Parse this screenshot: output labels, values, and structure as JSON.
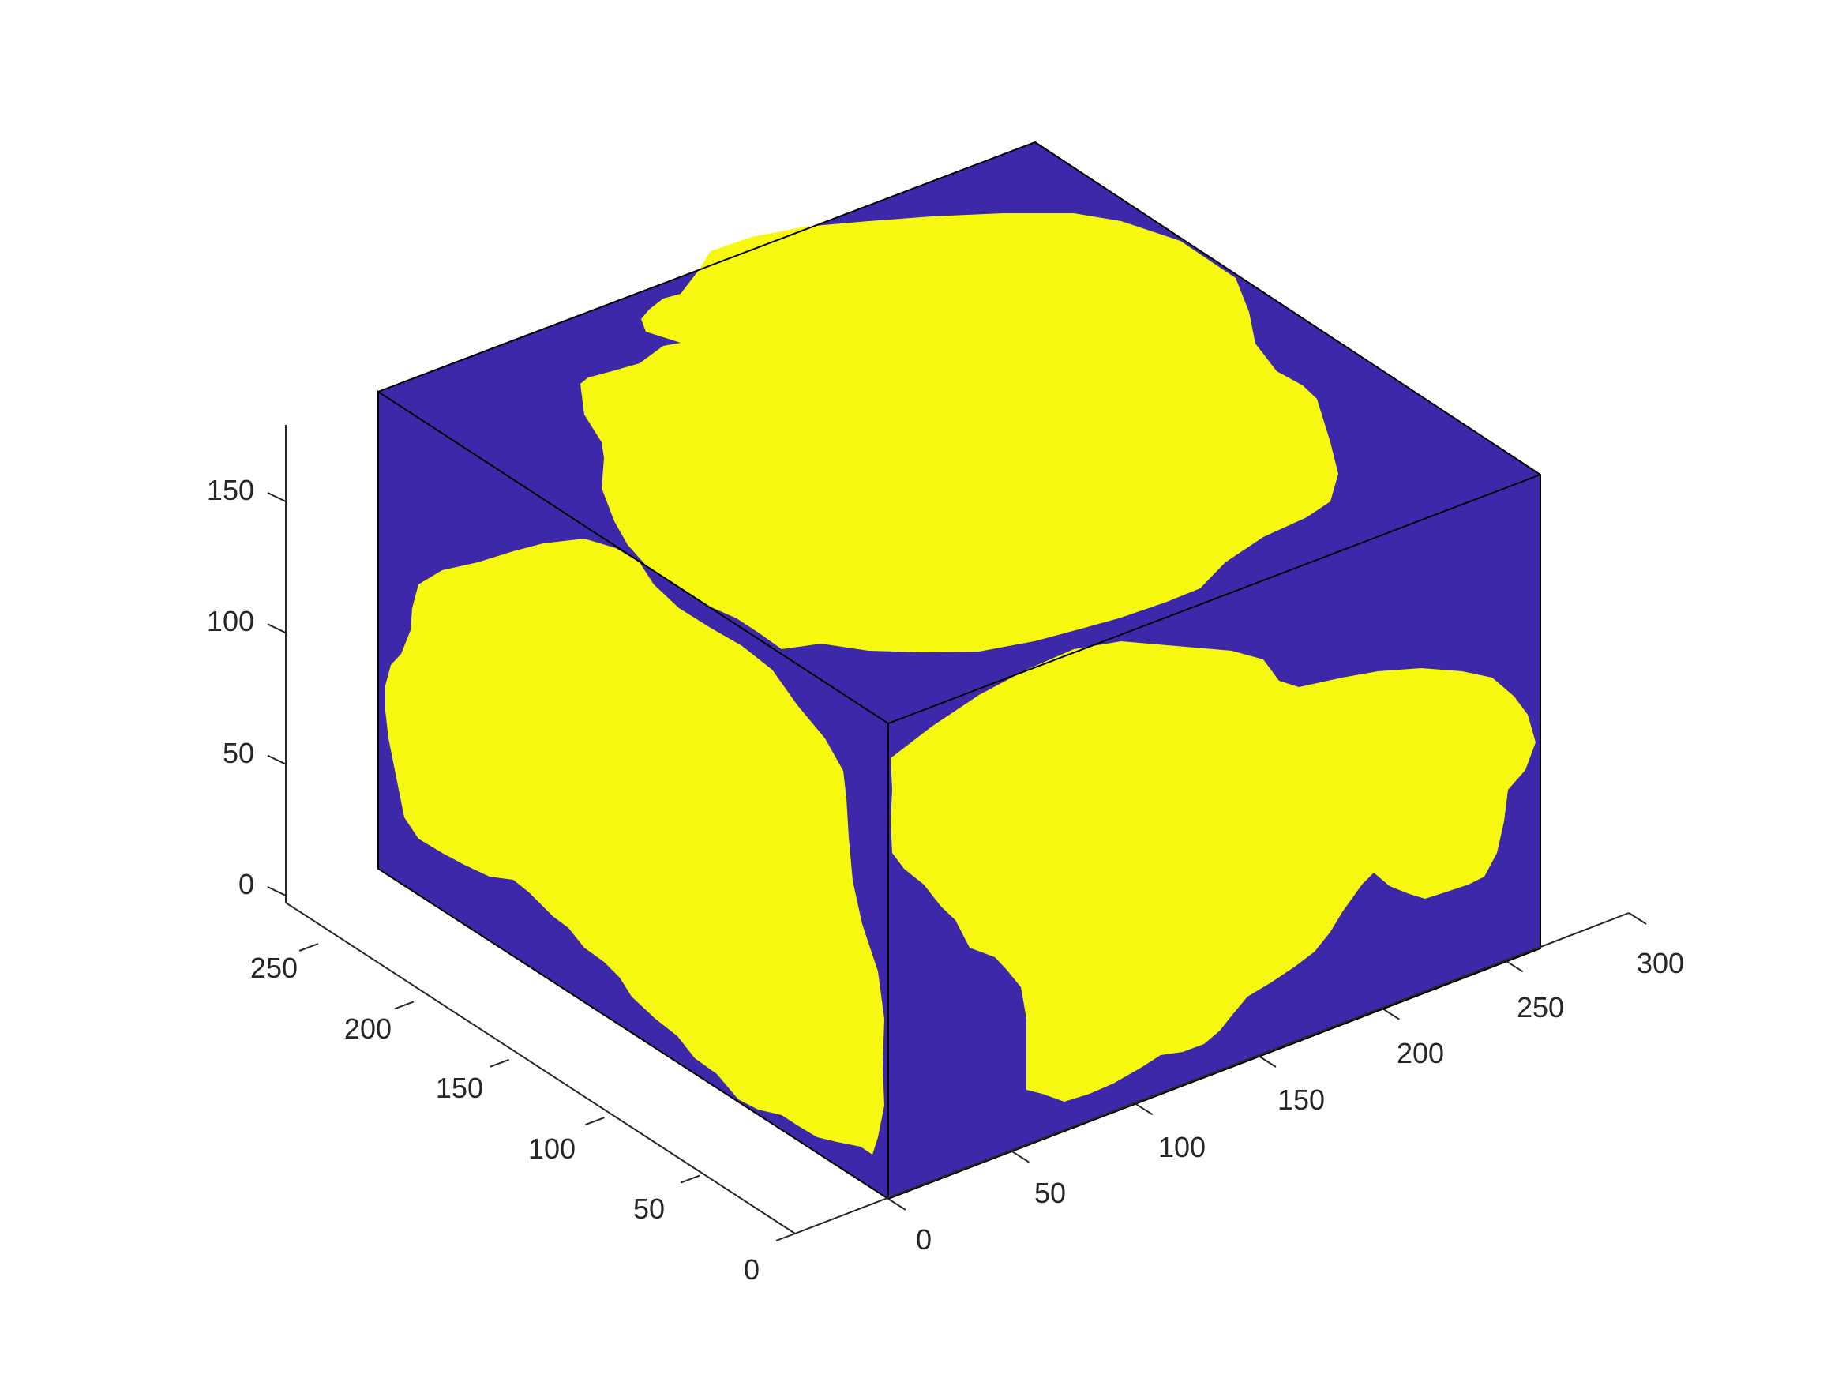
{
  "chart_data": {
    "type": "3d-volume-slice",
    "x": {
      "ticks": [
        "0",
        "50",
        "100",
        "150",
        "200",
        "250",
        "300"
      ],
      "lim": [
        0,
        300
      ]
    },
    "y": {
      "ticks": [
        "0",
        "50",
        "100",
        "150",
        "200",
        "250"
      ],
      "lim": [
        0,
        270
      ]
    },
    "z": {
      "ticks": [
        "0",
        "50",
        "100",
        "150"
      ],
      "lim": [
        0,
        180
      ]
    },
    "box": {
      "x": [
        0,
        270
      ],
      "y": [
        0,
        270
      ],
      "z": [
        0,
        180
      ]
    },
    "colors": {
      "background_phase": "#3c28a8",
      "inclusion_phase": "#f6f80f",
      "edges": "#000000",
      "axes": "#262626"
    },
    "faces": [
      "top",
      "left-front",
      "right-front"
    ],
    "grid": false,
    "legend": "none"
  }
}
